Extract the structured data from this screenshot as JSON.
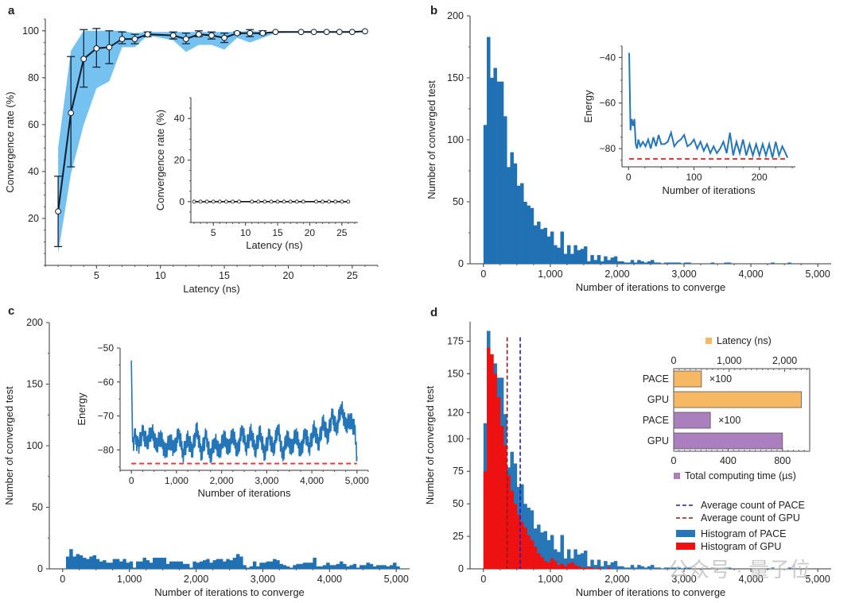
{
  "chart_data": [
    {
      "panel": "a",
      "type": "line",
      "xlabel": "Latency (ns)",
      "ylabel": "Convergence rate (%)",
      "xlim": [
        1,
        27
      ],
      "ylim": [
        0,
        105
      ],
      "xticks": [
        5,
        10,
        15,
        20,
        25
      ],
      "yticks": [
        20,
        40,
        60,
        80,
        100
      ],
      "x": [
        2,
        3,
        4,
        5,
        6,
        7,
        8,
        9,
        11,
        12,
        13,
        14,
        15,
        16,
        17,
        18,
        19,
        21,
        22,
        23,
        24,
        25,
        26
      ],
      "mean": [
        23,
        65,
        88,
        92.5,
        93,
        96.5,
        96.5,
        98.5,
        98,
        96.5,
        98.5,
        98,
        97,
        99,
        99,
        99,
        99.5,
        99.5,
        99.5,
        99.5,
        99.5,
        99.5,
        99.8
      ],
      "err_low": [
        8,
        42,
        76,
        84.5,
        86,
        94.5,
        94.5,
        97.5,
        96.5,
        94.5,
        97.5,
        96.5,
        95,
        98.5,
        97.5,
        98.5,
        99.5,
        99.5,
        99.5,
        99.5,
        99.5,
        99.5,
        99.8
      ],
      "err_high": [
        38,
        89,
        100.5,
        101,
        100,
        99.5,
        98.5,
        99.5,
        99.5,
        99,
        100,
        99.5,
        99,
        99.5,
        100.5,
        100,
        99.5,
        99.5,
        99.5,
        99.5,
        99.5,
        99.5,
        99.8
      ],
      "band_low": [
        5,
        39,
        60,
        75.5,
        78.5,
        93,
        93,
        98,
        96,
        91,
        94,
        94,
        92,
        97,
        95,
        97,
        99,
        99.5,
        99.5,
        99.5,
        99.5,
        99.5,
        99.8
      ],
      "band_high": [
        50,
        91.5,
        100,
        100,
        100,
        100,
        99,
        99.5,
        99.5,
        99.5,
        99.5,
        99.5,
        99.5,
        99.5,
        100,
        99.5,
        99.5,
        99.5,
        99.5,
        99.5,
        99.5,
        99.5,
        99.8
      ],
      "inset": {
        "type": "line",
        "xlabel": "Latency (ns)",
        "ylabel": "Convergence rate (%)",
        "xlim": [
          1.5,
          27.5
        ],
        "ylim": [
          -10,
          50
        ],
        "xticks": [
          5,
          10,
          15,
          20,
          25
        ],
        "yticks": [
          0,
          20,
          40
        ],
        "x": [
          2,
          3,
          4,
          5,
          6,
          7,
          8,
          9,
          11,
          12,
          13,
          14,
          15,
          16,
          17,
          18,
          19,
          21,
          22,
          23,
          24,
          25,
          26
        ],
        "y": [
          0,
          0,
          0,
          0,
          0,
          0,
          0,
          0,
          0,
          0,
          0,
          0,
          0,
          0,
          0,
          0,
          0,
          0,
          0,
          0,
          0,
          0,
          0
        ]
      }
    },
    {
      "panel": "b",
      "type": "bar",
      "xlabel": "Number of iterations to converge",
      "ylabel": "Number of converged test",
      "xlim": [
        -200,
        5200
      ],
      "ylim": [
        0,
        200
      ],
      "xticks": [
        0,
        1000,
        2000,
        3000,
        4000,
        5000
      ],
      "xtick_labels": [
        "0",
        "1,000",
        "2,000",
        "3,000",
        "4,000",
        "5,000"
      ],
      "yticks": [
        0,
        50,
        100,
        150,
        200
      ],
      "bin_width": 50,
      "bin_start": 0,
      "values": [
        112,
        183,
        150,
        158,
        147,
        147,
        119,
        78,
        90,
        81,
        63,
        65,
        50,
        47,
        45,
        31,
        34,
        28,
        29,
        22,
        26,
        15,
        13,
        26,
        8,
        15,
        8,
        15,
        11,
        12,
        14,
        2,
        7,
        3,
        7,
        2,
        6,
        3,
        5,
        6,
        2,
        2,
        1,
        1,
        3,
        1,
        3,
        2,
        1,
        2,
        3,
        1,
        1,
        0,
        1,
        1,
        1,
        1,
        1,
        0,
        1,
        1,
        0,
        0,
        0,
        0,
        0,
        0,
        1,
        0,
        0,
        0,
        1,
        1,
        0,
        0,
        0,
        0,
        0,
        0,
        0,
        0,
        0,
        0,
        0,
        0,
        1,
        0,
        0,
        0,
        0,
        1,
        0,
        0,
        0,
        0,
        0,
        0,
        0,
        0
      ],
      "inset": {
        "type": "line",
        "xlabel": "Number of iterations",
        "ylabel": "Energy",
        "xlim": [
          -10,
          255
        ],
        "ylim": [
          -88,
          -35
        ],
        "xticks": [
          0,
          100,
          200
        ],
        "yticks": [
          -80,
          -60,
          -40
        ],
        "reference_line": -84.5,
        "x": [
          1,
          3,
          5,
          7,
          9,
          11,
          13,
          15,
          18,
          22,
          26,
          30,
          34,
          38,
          42,
          46,
          50,
          55,
          60,
          65,
          70,
          75,
          80,
          85,
          90,
          95,
          100,
          105,
          110,
          115,
          120,
          125,
          130,
          135,
          140,
          145,
          150,
          155,
          160,
          165,
          170,
          175,
          180,
          185,
          190,
          195,
          200,
          205,
          210,
          215,
          220,
          225,
          230,
          235,
          240,
          243
        ],
        "y": [
          -38,
          -72,
          -67,
          -70,
          -67,
          -78,
          -80,
          -76,
          -79,
          -77,
          -79,
          -76,
          -80,
          -75,
          -79,
          -74,
          -78,
          -78,
          -77,
          -73,
          -79,
          -77,
          -76,
          -74,
          -79,
          -78,
          -76,
          -80,
          -77,
          -81,
          -78,
          -82,
          -79,
          -82,
          -80,
          -77,
          -82,
          -73,
          -83,
          -77,
          -82,
          -76,
          -83,
          -78,
          -83,
          -78,
          -83,
          -78,
          -83,
          -78,
          -84,
          -77,
          -83,
          -79,
          -82,
          -84
        ]
      }
    },
    {
      "panel": "c",
      "type": "bar",
      "xlabel": "Number of iterations to converge",
      "ylabel": "Number of converged test",
      "xlim": [
        -200,
        5200
      ],
      "ylim": [
        0,
        200
      ],
      "xticks": [
        0,
        1000,
        2000,
        3000,
        4000,
        5000
      ],
      "xtick_labels": [
        "0",
        "1,000",
        "2,000",
        "3,000",
        "4,000",
        "5,000"
      ],
      "yticks": [
        0,
        50,
        100,
        150,
        200
      ],
      "bin_width": 50,
      "bin_start": 50,
      "values": [
        10,
        16,
        10,
        12,
        11,
        9,
        8,
        10,
        11,
        8,
        6,
        7,
        5,
        5,
        8,
        8,
        6,
        8,
        5,
        6,
        1,
        6,
        6,
        9,
        7,
        5,
        9,
        9,
        9,
        9,
        4,
        6,
        6,
        6,
        6,
        4,
        4,
        1,
        6,
        5,
        6,
        7,
        8,
        5,
        7,
        8,
        8,
        6,
        8,
        7,
        9,
        12,
        10,
        3,
        1,
        2,
        6,
        2,
        5,
        5,
        6,
        6,
        8,
        7,
        4,
        3,
        2,
        1,
        3,
        4,
        4,
        5,
        5,
        5,
        9,
        2,
        2,
        3,
        5,
        3,
        3,
        4,
        6,
        4,
        2,
        3,
        4,
        1,
        3,
        3,
        5,
        4,
        2,
        3,
        3,
        3,
        2,
        3,
        5,
        2
      ],
      "inset": {
        "type": "line",
        "xlabel": "Number of iterations",
        "ylabel": "Energy",
        "xlim": [
          -250,
          5250
        ],
        "ylim": [
          -86,
          -50
        ],
        "xticks": [
          0,
          1000,
          2000,
          3000,
          4000,
          5000
        ],
        "xtick_labels": [
          "0",
          "1,000",
          "2,000",
          "3,000",
          "4,000",
          "5,000"
        ],
        "yticks": [
          -80,
          -70,
          -60,
          -50
        ],
        "reference_line": -84,
        "x": [
          0,
          20,
          40,
          80,
          150,
          250,
          350,
          450,
          550,
          650,
          750,
          850,
          950,
          1050,
          1150,
          1250,
          1350,
          1450,
          1550,
          1650,
          1750,
          1850,
          1950,
          2050,
          2150,
          2250,
          2350,
          2450,
          2550,
          2650,
          2750,
          2850,
          2950,
          3050,
          3150,
          3250,
          3350,
          3450,
          3550,
          3650,
          3750,
          3850,
          3950,
          4050,
          4150,
          4250,
          4350,
          4450,
          4550,
          4650,
          4750,
          4850,
          4950,
          5000
        ],
        "y": [
          -51,
          -75,
          -78,
          -76,
          -79,
          -75,
          -78,
          -74,
          -79,
          -76,
          -81,
          -77,
          -80,
          -75,
          -81,
          -77,
          -80,
          -74,
          -81,
          -76,
          -82,
          -77,
          -81,
          -76,
          -80,
          -75,
          -81,
          -74,
          -79,
          -75,
          -80,
          -75,
          -81,
          -76,
          -80,
          -73,
          -82,
          -76,
          -80,
          -75,
          -81,
          -75,
          -79,
          -74,
          -78,
          -72,
          -76,
          -70,
          -74,
          -67,
          -73,
          -71,
          -74,
          -82
        ]
      }
    },
    {
      "panel": "d",
      "type": "bar",
      "xlabel": "Number of iterations to converge",
      "ylabel": "Number of converged test",
      "xlim": [
        -200,
        5200
      ],
      "ylim": [
        0,
        190
      ],
      "xticks": [
        0,
        1000,
        2000,
        3000,
        4000,
        5000
      ],
      "xtick_labels": [
        "0",
        "1,000",
        "2,000",
        "3,000",
        "4,000",
        "5,000"
      ],
      "yticks": [
        0,
        25,
        50,
        75,
        100,
        120,
        150,
        175
      ],
      "bin_width": 50,
      "bin_start": 0,
      "series": [
        {
          "name": "Histogram of PACE",
          "color": "#2776b8",
          "values": [
            112,
            183,
            150,
            158,
            147,
            147,
            119,
            78,
            90,
            81,
            63,
            65,
            50,
            47,
            45,
            31,
            34,
            28,
            29,
            22,
            26,
            15,
            13,
            26,
            8,
            15,
            8,
            15,
            11,
            12,
            14,
            2,
            7,
            3,
            7,
            2,
            6,
            3,
            5,
            6,
            2,
            2,
            1,
            1,
            3,
            1,
            3,
            2,
            1,
            2,
            3,
            1,
            1,
            0,
            1,
            1,
            1,
            1,
            1,
            0,
            1,
            1,
            0,
            0,
            0,
            0,
            0,
            0,
            1,
            0,
            0,
            0,
            1,
            1,
            0,
            0,
            0,
            0,
            0,
            0,
            0,
            0,
            0,
            0,
            0,
            0,
            1,
            0,
            0,
            0,
            0,
            1,
            0,
            0,
            0,
            0,
            0,
            0,
            0,
            0
          ]
        },
        {
          "name": "Histogram of GPU",
          "color": "#ee1111",
          "values": [
            75,
            170,
            165,
            150,
            132,
            110,
            95,
            72,
            60,
            50,
            42,
            36,
            32,
            26,
            22,
            17,
            12,
            9,
            6,
            5,
            8,
            6,
            3,
            4,
            2,
            4,
            5,
            3,
            2,
            1,
            1,
            1,
            1,
            0,
            1,
            0,
            0,
            1,
            0,
            0,
            0,
            0,
            0,
            0,
            0,
            0,
            0,
            0,
            0,
            0,
            0,
            0,
            0,
            0,
            0,
            0,
            0,
            0,
            0,
            0,
            0,
            0,
            0,
            0,
            0,
            0,
            0,
            0,
            0,
            0,
            0,
            0,
            0,
            0,
            0,
            0,
            0,
            0,
            0,
            0,
            0,
            0,
            0,
            0,
            0,
            0,
            0,
            0,
            0,
            0,
            0,
            0,
            0,
            0,
            0,
            0,
            0,
            0,
            0,
            0
          ]
        }
      ],
      "average_lines": [
        {
          "name": "Average count of PACE",
          "x": 550,
          "color": "#1a1acc"
        },
        {
          "name": "Average count of GPU",
          "x": 355,
          "color": "#8b1a1a"
        }
      ],
      "legend_position": "right",
      "inset": {
        "type": "bar",
        "orientation": "horizontal",
        "categories": [
          "PACE",
          "GPU",
          "PACE",
          "GPU"
        ],
        "series": [
          {
            "name": "Latency (ns)",
            "color": "#f7b863",
            "axis": "top",
            "xlim": [
              0,
              2450
            ],
            "xticks": [
              0,
              1000,
              2000
            ],
            "xtick_labels": [
              "0",
              "1,000",
              "2,000"
            ],
            "values": [
              500,
              2300
            ],
            "annotation": [
              "×100",
              ""
            ]
          },
          {
            "name": "Total computing time (µs)",
            "color": "#ab7fbe",
            "axis": "bottom",
            "xlim": [
              0,
              1000
            ],
            "xticks": [
              0,
              400,
              800
            ],
            "xtick_labels": [
              "0",
              "400",
              "800"
            ],
            "values": [
              270,
              800
            ],
            "annotation": [
              "×100",
              ""
            ]
          }
        ]
      }
    }
  ],
  "panels": {
    "a": {
      "letter": "a"
    },
    "b": {
      "letter": "b"
    },
    "c": {
      "letter": "c"
    },
    "d": {
      "letter": "d"
    }
  },
  "watermark": {
    "text": "公众号 · 量子位"
  }
}
